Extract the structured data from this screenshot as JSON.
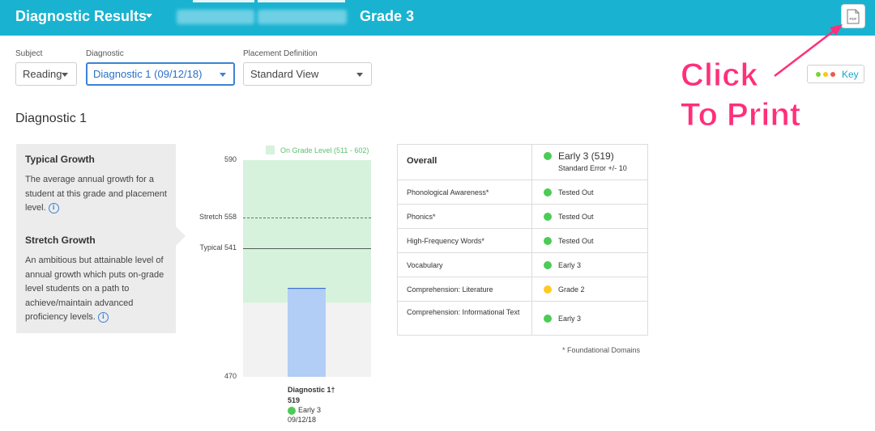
{
  "header": {
    "title": "Diagnostic Results",
    "grade": "Grade 3",
    "pdf_icon_label": "PDF"
  },
  "filters": {
    "subject": {
      "label": "Subject",
      "value": "Reading"
    },
    "diagnostic": {
      "label": "Diagnostic",
      "value": "Diagnostic 1 (09/12/18)"
    },
    "placement": {
      "label": "Placement Definition",
      "value": "Standard View"
    }
  },
  "key_button": {
    "label": "Key",
    "dots": [
      "#7bd13a",
      "#ffc61a",
      "#f0584d"
    ]
  },
  "annotation": {
    "line1": "Click",
    "line2": "To Print"
  },
  "section_title": "Diagnostic 1",
  "info": {
    "typical_heading": "Typical Growth",
    "typical_text": "The average annual growth for a student at this grade and placement level.",
    "stretch_heading": "Stretch Growth",
    "stretch_text": "An ambitious but attainable level of annual growth which puts on-grade level students on a path to achieve/maintain advanced proficiency levels.",
    "info_icon": "i"
  },
  "chart_data": {
    "type": "bar",
    "legend": "On Grade Level (511 - 602)",
    "ylim": [
      470,
      590
    ],
    "y_top_label": "590",
    "y_bottom_label": "470",
    "band": [
      511,
      590
    ],
    "lines": [
      {
        "label": "Stretch 558",
        "value": 558,
        "style": "dashed"
      },
      {
        "label": "Typical 541",
        "value": 541,
        "style": "solid"
      }
    ],
    "bars": [
      {
        "category": "Diagnostic 1†",
        "value": 519,
        "value_label": "519",
        "placement": "Early 3",
        "date": "09/12/18",
        "color": "#b2cdf6"
      }
    ],
    "colors": {
      "band": "#d7f2dc",
      "below": "#f3f2f3",
      "legend_text": "#5cc16f"
    }
  },
  "results": {
    "overall": {
      "label": "Overall",
      "value": "Early 3 (519)",
      "sub": "Standard Error +/- 10",
      "color": "#4ccb57"
    },
    "rows": [
      {
        "label": "Phonological Awareness*",
        "value": "Tested Out",
        "color": "#4ccb57"
      },
      {
        "label": "Phonics*",
        "value": "Tested Out",
        "color": "#4ccb57"
      },
      {
        "label": "High-Frequency Words*",
        "value": "Tested Out",
        "color": "#4ccb57"
      },
      {
        "label": "Vocabulary",
        "value": "Early 3",
        "color": "#4ccb57"
      },
      {
        "label": "Comprehension: Literature",
        "value": "Grade 2",
        "color": "#ffc926"
      },
      {
        "label": "Comprehension: Informational Text",
        "value": "Early 3",
        "color": "#4ccb57"
      }
    ],
    "footnote": "* Foundational Domains"
  }
}
